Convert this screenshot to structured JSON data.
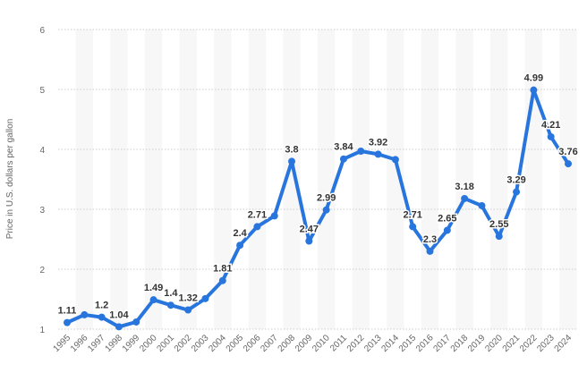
{
  "chart_data": {
    "type": "line",
    "title": "",
    "xlabel": "",
    "ylabel": "Price in U.S. dollars per gallon",
    "ylim": [
      1,
      6
    ],
    "yticks": [
      1,
      2,
      3,
      4,
      5,
      6
    ],
    "grid": true,
    "categories": [
      "1995",
      "1996",
      "1997",
      "1998",
      "1999",
      "2000",
      "2001",
      "2002",
      "2003",
      "2004",
      "2005",
      "2006",
      "2007",
      "2008",
      "2009",
      "2010",
      "2011",
      "2012",
      "2013",
      "2014",
      "2015",
      "2016",
      "2017",
      "2018",
      "2019",
      "2020",
      "2021",
      "2022",
      "2023",
      "2024"
    ],
    "values": [
      1.11,
      1.24,
      1.2,
      1.04,
      1.12,
      1.49,
      1.4,
      1.32,
      1.51,
      1.81,
      2.4,
      2.71,
      2.89,
      3.8,
      2.47,
      2.99,
      3.84,
      3.97,
      3.92,
      3.83,
      2.71,
      2.3,
      2.65,
      3.18,
      3.06,
      2.55,
      3.29,
      4.99,
      4.21,
      3.76
    ],
    "labels": [
      "1.11",
      null,
      "1.2",
      "1.04",
      null,
      "1.49",
      "1.4",
      "1.32",
      null,
      "1.81",
      "2.4",
      "2.71",
      null,
      "3.8",
      "2.47",
      "2.99",
      "3.84",
      null,
      "3.92",
      null,
      "2.71",
      "2.3",
      "2.65",
      "3.18",
      null,
      "2.55",
      "3.29",
      "4.99",
      "4.21",
      "3.76"
    ],
    "line_color": "#2876dd"
  }
}
